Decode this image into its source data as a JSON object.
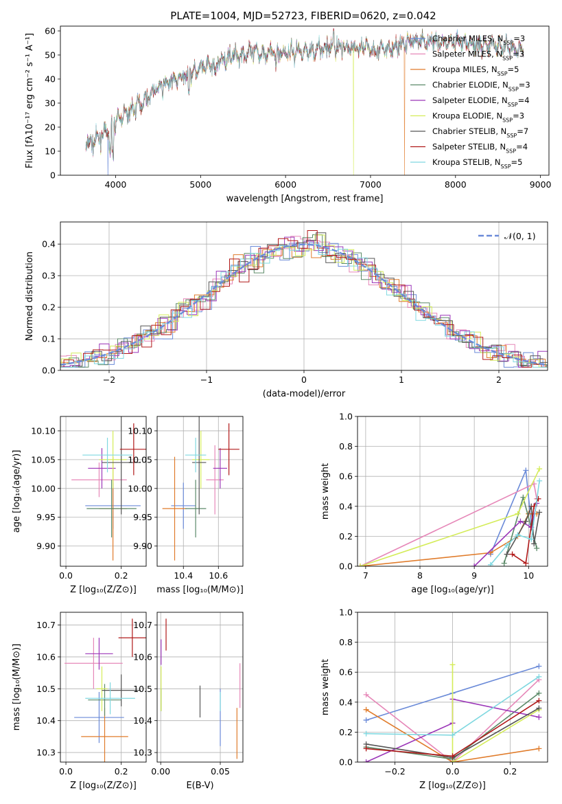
{
  "title": "PLATE=1004, MJD=52723, FIBERID=0620, z=0.042",
  "series": [
    {
      "name": "Chabrier MILES",
      "nssp": "3",
      "color": "#6a8ad8"
    },
    {
      "name": "Salpeter MILES",
      "nssp": "3",
      "color": "#e687b8"
    },
    {
      "name": "Kroupa MILES",
      "nssp": "5",
      "color": "#e07b2a"
    },
    {
      "name": "Chabrier ELODIE",
      "nssp": "3",
      "color": "#5b8a68"
    },
    {
      "name": "Salpeter ELODIE",
      "nssp": "4",
      "color": "#9b35b8"
    },
    {
      "name": "Kroupa ELODIE",
      "nssp": "3",
      "color": "#d4ec58"
    },
    {
      "name": "Chabrier STELIB",
      "nssp": "7",
      "color": "#555555"
    },
    {
      "name": "Salpeter STELIB",
      "nssp": "4",
      "color": "#b01818"
    },
    {
      "name": "Kroupa STELIB",
      "nssp": "5",
      "color": "#7fd8e0"
    }
  ],
  "chart_data": [
    {
      "id": "spectrum",
      "type": "line",
      "xlabel": "wavelength [Angstrom, rest frame]",
      "ylabel": "Flux [fλ10⁻¹⁷ erg cm⁻² s⁻¹ A⁻¹]",
      "xlim": [
        3350,
        9100
      ],
      "ylim": [
        0,
        62
      ],
      "xticks": [
        4000,
        5000,
        6000,
        7000,
        8000,
        9000
      ],
      "yticks": [
        0,
        10,
        20,
        30,
        40,
        50,
        60
      ],
      "grid": false,
      "legend": "right",
      "continuum": [
        [
          3650,
          13
        ],
        [
          3750,
          14
        ],
        [
          3850,
          17
        ],
        [
          3950,
          20
        ],
        [
          4050,
          24
        ],
        [
          4150,
          26
        ],
        [
          4300,
          30
        ],
        [
          4450,
          35
        ],
        [
          4600,
          38
        ],
        [
          4800,
          41
        ],
        [
          5000,
          44
        ],
        [
          5200,
          47
        ],
        [
          5400,
          50
        ],
        [
          5700,
          51
        ],
        [
          6000,
          51
        ],
        [
          6300,
          52
        ],
        [
          6600,
          53
        ],
        [
          6900,
          53
        ],
        [
          7200,
          52
        ],
        [
          7500,
          56
        ],
        [
          8000,
          55
        ],
        [
          8500,
          54
        ],
        [
          8800,
          52
        ]
      ],
      "gaps": [
        {
          "series": "Chabrier MILES",
          "x": 3910
        },
        {
          "series": "Kroupa ELODIE",
          "x": 6800
        },
        {
          "series": "Kroupa MILES",
          "x": 7400
        }
      ]
    },
    {
      "id": "residuals",
      "type": "histogram",
      "xlabel": "(data-model)/error",
      "ylabel": "Normed distribution",
      "xlim": [
        -2.5,
        2.5
      ],
      "ylim": [
        0,
        0.47
      ],
      "xticks": [
        -2,
        -1,
        0,
        1,
        2
      ],
      "xtick_labels": [
        "−2",
        "−1",
        "0",
        "1",
        "2"
      ],
      "yticks": [
        0,
        0.1,
        0.2,
        0.3,
        0.4
      ],
      "ytick_labels": [
        "0.0",
        "0.1",
        "0.2",
        "0.3",
        "0.4"
      ],
      "grid": true,
      "bin_width": 0.1,
      "reference": {
        "label": "𝒩(0, 1)",
        "mean": 0,
        "sigma": 1,
        "color": "#6a8ad8"
      }
    },
    {
      "id": "age_vs_Z",
      "type": "errorbar",
      "xlabel": "Z [log₁₀(Z/Z⊙)]",
      "ylabel": "age  [log₁₀(age/yr)]",
      "xlim": [
        -0.02,
        0.29
      ],
      "ylim": [
        9.865,
        10.125
      ],
      "xticks": [
        0.0,
        0.2
      ],
      "xtick_labels": [
        "0.0",
        "0.2"
      ],
      "yticks": [
        9.9,
        9.95,
        10.0,
        10.05,
        10.1
      ],
      "ytick_labels": [
        "9.90",
        "9.95",
        "10.00",
        "10.05",
        "10.10"
      ],
      "grid": true,
      "points": [
        {
          "x": 0.17,
          "y": 9.97,
          "xerr": 0.1,
          "yerr": 0.04,
          "color": "#6a8ad8"
        },
        {
          "x": 0.12,
          "y": 10.015,
          "xerr": 0.1,
          "yerr": 0.03,
          "color": "#e687b8"
        },
        {
          "x": 0.17,
          "y": 9.965,
          "xerr": 0.05,
          "yerr": 0.09,
          "color": "#e07b2a"
        },
        {
          "x": 0.165,
          "y": 9.965,
          "xerr": 0.09,
          "yerr": 0.05,
          "color": "#5b8a68"
        },
        {
          "x": 0.13,
          "y": 10.035,
          "xerr": 0.05,
          "yerr": 0.035,
          "color": "#9b35b8"
        },
        {
          "x": 0.17,
          "y": 10.05,
          "xerr": 0.05,
          "yerr": 0.05,
          "color": "#d4ec58"
        },
        {
          "x": 0.2,
          "y": 10.045,
          "xerr": 0.07,
          "yerr": 0.09,
          "color": "#555555"
        },
        {
          "x": 0.245,
          "y": 10.068,
          "xerr": 0.05,
          "yerr": 0.045,
          "color": "#b01818"
        },
        {
          "x": 0.15,
          "y": 10.058,
          "xerr": 0.09,
          "yerr": 0.03,
          "color": "#7fd8e0"
        }
      ]
    },
    {
      "id": "age_vs_mass",
      "type": "errorbar",
      "xlabel": "mass [log₁₀(M/M⊙)]",
      "ylabel": "",
      "xlim": [
        10.25,
        10.74
      ],
      "ylim": [
        9.865,
        10.125
      ],
      "xticks": [
        10.4,
        10.6
      ],
      "xtick_labels": [
        "10.4",
        "10.6"
      ],
      "yticks": [
        9.9,
        9.95,
        10.0,
        10.05,
        10.1
      ],
      "ytick_labels": [
        "9.90",
        "9.95",
        "10.00",
        "10.05",
        "10.10"
      ],
      "grid": true,
      "points": [
        {
          "x": 10.4,
          "y": 9.97,
          "xerr": 0.07,
          "yerr": 0.04,
          "color": "#6a8ad8"
        },
        {
          "x": 10.58,
          "y": 10.015,
          "xerr": 0.05,
          "yerr": 0.06,
          "color": "#e687b8"
        },
        {
          "x": 10.35,
          "y": 9.965,
          "xerr": 0.07,
          "yerr": 0.09,
          "color": "#e07b2a"
        },
        {
          "x": 10.47,
          "y": 9.965,
          "xerr": 0.06,
          "yerr": 0.05,
          "color": "#5b8a68"
        },
        {
          "x": 10.61,
          "y": 10.035,
          "xerr": 0.04,
          "yerr": 0.035,
          "color": "#9b35b8"
        },
        {
          "x": 10.5,
          "y": 10.05,
          "xerr": 0.05,
          "yerr": 0.05,
          "color": "#d4ec58"
        },
        {
          "x": 10.49,
          "y": 10.045,
          "xerr": 0.04,
          "yerr": 0.09,
          "color": "#555555"
        },
        {
          "x": 10.66,
          "y": 10.068,
          "xerr": 0.06,
          "yerr": 0.045,
          "color": "#b01818"
        },
        {
          "x": 10.47,
          "y": 10.058,
          "xerr": 0.06,
          "yerr": 0.03,
          "color": "#7fd8e0"
        }
      ]
    },
    {
      "id": "massweight_vs_age",
      "type": "line",
      "xlabel": "age  [log₁₀(age/yr)]",
      "ylabel": "mass weight",
      "xlim": [
        6.85,
        10.35
      ],
      "ylim": [
        0,
        1
      ],
      "xticks": [
        7,
        8,
        9,
        10
      ],
      "xtick_labels": [
        "7",
        "8",
        "9",
        "10"
      ],
      "yticks": [
        0,
        0.2,
        0.4,
        0.6,
        0.8,
        1.0
      ],
      "ytick_labels": [
        "0.0",
        "0.2",
        "0.4",
        "0.6",
        "0.8",
        "1.0"
      ],
      "grid": true,
      "series": [
        {
          "color": "#6a8ad8",
          "points": [
            [
              9.3,
              0.08
            ],
            [
              9.95,
              0.64
            ],
            [
              10.05,
              0.28
            ]
          ]
        },
        {
          "color": "#e687b8",
          "points": [
            [
              6.9,
              0.0
            ],
            [
              10.1,
              0.55
            ],
            [
              10.15,
              0.45
            ]
          ]
        },
        {
          "color": "#e07b2a",
          "points": [
            [
              6.9,
              0.0
            ],
            [
              9.3,
              0.09
            ],
            [
              9.8,
              0.2
            ],
            [
              10.0,
              0.35
            ],
            [
              10.15,
              0.35
            ]
          ]
        },
        {
          "color": "#5b8a68",
          "points": [
            [
              9.55,
              0.02
            ],
            [
              9.9,
              0.46
            ],
            [
              10.15,
              0.12
            ]
          ]
        },
        {
          "color": "#9b35b8",
          "points": [
            [
              9.0,
              0.0
            ],
            [
              9.85,
              0.3
            ],
            [
              10.05,
              0.26
            ],
            [
              10.15,
              0.42
            ]
          ]
        },
        {
          "color": "#d4ec58",
          "points": [
            [
              6.9,
              0.0
            ],
            [
              9.8,
              0.35
            ],
            [
              10.2,
              0.65
            ]
          ]
        },
        {
          "color": "#555555",
          "points": [
            [
              9.6,
              0.08
            ],
            [
              9.95,
              0.3
            ],
            [
              10.05,
              0.4
            ],
            [
              10.1,
              0.15
            ],
            [
              10.2,
              0.36
            ]
          ]
        },
        {
          "color": "#b01818",
          "points": [
            [
              9.7,
              0.08
            ],
            [
              9.95,
              0.02
            ],
            [
              10.1,
              0.4
            ],
            [
              10.18,
              0.45
            ]
          ]
        },
        {
          "color": "#7fd8e0",
          "points": [
            [
              9.3,
              0.01
            ],
            [
              9.6,
              0.14
            ],
            [
              9.8,
              0.21
            ],
            [
              10.05,
              0.18
            ],
            [
              10.2,
              0.57
            ]
          ]
        }
      ]
    },
    {
      "id": "mass_vs_Z",
      "type": "errorbar",
      "xlabel": "Z [log₁₀(Z/Z⊙)]",
      "ylabel": "mass [log₁₀(M/M⊙)]",
      "xlim": [
        -0.02,
        0.29
      ],
      "ylim": [
        10.27,
        10.74
      ],
      "xticks": [
        0.0,
        0.2
      ],
      "xtick_labels": [
        "0.0",
        "0.2"
      ],
      "yticks": [
        10.3,
        10.4,
        10.5,
        10.6,
        10.7
      ],
      "ytick_labels": [
        "10.3",
        "10.4",
        "10.5",
        "10.6",
        "10.7"
      ],
      "grid": true,
      "points": [
        {
          "x": 0.12,
          "y": 10.41,
          "xerr": 0.09,
          "yerr": 0.08,
          "color": "#6a8ad8"
        },
        {
          "x": 0.1,
          "y": 10.58,
          "xerr": 0.105,
          "yerr": 0.08,
          "color": "#e687b8"
        },
        {
          "x": 0.14,
          "y": 10.35,
          "xerr": 0.085,
          "yerr": 0.09,
          "color": "#e07b2a"
        },
        {
          "x": 0.14,
          "y": 10.465,
          "xerr": 0.06,
          "yerr": 0.05,
          "color": "#5b8a68"
        },
        {
          "x": 0.12,
          "y": 10.61,
          "xerr": 0.05,
          "yerr": 0.05,
          "color": "#9b35b8"
        },
        {
          "x": 0.13,
          "y": 10.5,
          "xerr": 0.02,
          "yerr": 0.07,
          "color": "#d4ec58"
        },
        {
          "x": 0.2,
          "y": 10.495,
          "xerr": 0.07,
          "yerr": 0.05,
          "color": "#555555"
        },
        {
          "x": 0.24,
          "y": 10.66,
          "xerr": 0.05,
          "yerr": 0.06,
          "color": "#b01818"
        },
        {
          "x": 0.16,
          "y": 10.47,
          "xerr": 0.09,
          "yerr": 0.05,
          "color": "#7fd8e0"
        }
      ]
    },
    {
      "id": "mass_vs_EBV",
      "type": "errorbar",
      "xlabel": "E(B-V)",
      "ylabel": "",
      "xlim": [
        -0.003,
        0.069
      ],
      "ylim": [
        10.27,
        10.74
      ],
      "xticks": [
        0.0,
        0.05
      ],
      "xtick_labels": [
        "0.00",
        "0.05"
      ],
      "yticks": [
        10.3,
        10.4,
        10.5,
        10.6,
        10.7
      ],
      "ytick_labels": [
        "10.3",
        "10.4",
        "10.5",
        "10.6",
        "10.7"
      ],
      "grid": true,
      "points": [
        {
          "x": 0.05,
          "y": 10.41,
          "xerr": 0,
          "yerr": 0.09,
          "color": "#6a8ad8"
        },
        {
          "x": 0.0665,
          "y": 10.51,
          "xerr": 0,
          "yerr": 0.07,
          "color": "#e687b8"
        },
        {
          "x": 0.064,
          "y": 10.36,
          "xerr": 0,
          "yerr": 0.08,
          "color": "#e07b2a"
        },
        {
          "x": 0.0003,
          "y": 10.465,
          "xerr": 0,
          "yerr": 0.035,
          "color": "#5b8a68"
        },
        {
          "x": 0.0003,
          "y": 10.615,
          "xerr": 0,
          "yerr": 0.04,
          "color": "#9b35b8"
        },
        {
          "x": 0.0003,
          "y": 10.5,
          "xerr": 0,
          "yerr": 0.07,
          "color": "#d4ec58"
        },
        {
          "x": 0.033,
          "y": 10.46,
          "xerr": 0,
          "yerr": 0.05,
          "color": "#555555"
        },
        {
          "x": 0.0045,
          "y": 10.67,
          "xerr": 0,
          "yerr": 0.05,
          "color": "#b01818"
        },
        {
          "x": 0.05,
          "y": 10.46,
          "xerr": 0,
          "yerr": 0.03,
          "color": "#7fd8e0"
        }
      ]
    },
    {
      "id": "massweight_vs_Z",
      "type": "line",
      "xlabel": "Z [log₁₀(Z/Z⊙)]",
      "ylabel": "mass weight",
      "xlim": [
        -0.33,
        0.33
      ],
      "ylim": [
        0,
        1
      ],
      "xticks": [
        -0.2,
        0.0,
        0.2
      ],
      "xtick_labels": [
        "−0.2",
        "0.0",
        "0.2"
      ],
      "yticks": [
        0,
        0.2,
        0.4,
        0.6,
        0.8,
        1.0
      ],
      "ytick_labels": [
        "0.0",
        "0.2",
        "0.4",
        "0.6",
        "0.8",
        "1.0"
      ],
      "grid": true,
      "series": [
        {
          "color": "#6a8ad8",
          "points": [
            [
              -0.3,
              0.28
            ],
            [
              0.0,
              0.46
            ],
            [
              0.3,
              0.64
            ]
          ]
        },
        {
          "color": "#e687b8",
          "points": [
            [
              -0.3,
              0.45
            ],
            [
              0.0,
              0.0
            ],
            [
              0.3,
              0.55
            ]
          ]
        },
        {
          "color": "#e07b2a",
          "points": [
            [
              -0.3,
              0.35
            ],
            [
              0.0,
              0.0
            ],
            [
              0.3,
              0.09
            ]
          ]
        },
        {
          "color": "#5b8a68",
          "points": [
            [
              -0.3,
              0.1
            ],
            [
              0.0,
              0.02
            ],
            [
              0.3,
              0.46
            ]
          ]
        },
        {
          "color": "#9b35b8",
          "points": [
            [
              -0.3,
              0.0
            ],
            [
              0.0,
              0.26
            ],
            [
              0.0,
              0.42
            ],
            [
              0.3,
              0.3
            ]
          ]
        },
        {
          "color": "#d4ec58",
          "points": [
            [
              0.0,
              0.65
            ],
            [
              0.0,
              0.0
            ],
            [
              0.3,
              0.35
            ]
          ]
        },
        {
          "color": "#555555",
          "points": [
            [
              -0.3,
              0.12
            ],
            [
              0.0,
              0.03
            ],
            [
              0.3,
              0.36
            ]
          ]
        },
        {
          "color": "#b01818",
          "points": [
            [
              -0.3,
              0.09
            ],
            [
              0.0,
              0.04
            ],
            [
              0.3,
              0.41
            ]
          ]
        },
        {
          "color": "#7fd8e0",
          "points": [
            [
              -0.3,
              0.19
            ],
            [
              0.0,
              0.18
            ],
            [
              0.3,
              0.57
            ]
          ]
        }
      ]
    }
  ]
}
